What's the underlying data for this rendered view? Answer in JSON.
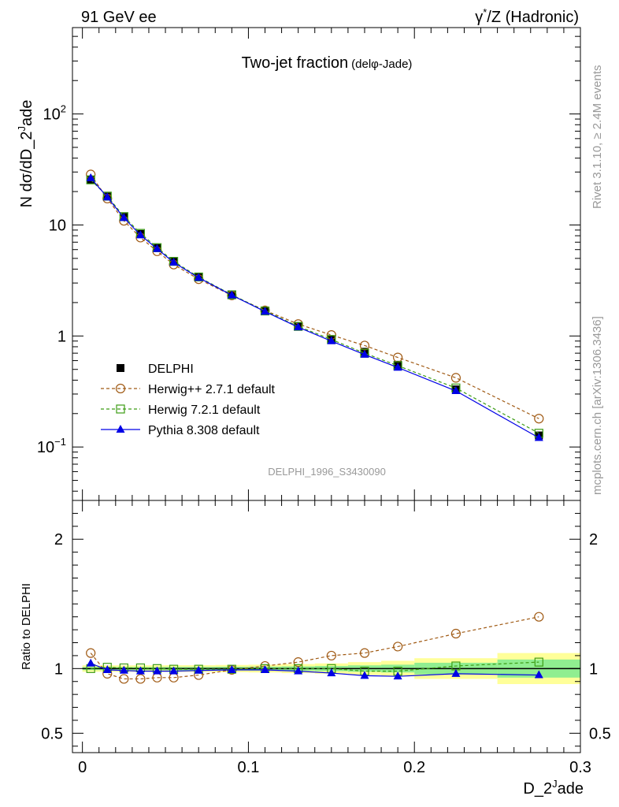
{
  "header": {
    "left": "91 GeV ee",
    "right_prefix": "γ",
    "right_sup": "*",
    "right_suffix": "/Z (Hadronic)"
  },
  "side_labels": {
    "rivet": "Rivet 3.1.10, ≥ 2.4M events",
    "mcplots": "mcplots.cern.ch [arXiv:1306.3436]"
  },
  "chart_data": [
    {
      "type": "line",
      "title": "Two-jet fraction",
      "title_note": "(delφ-Jade)",
      "watermark": "DELPHI_1996_S3430090",
      "ylabel_prefix": "N dσ/dD_2",
      "ylabel_sup": "J",
      "ylabel_suffix": "ade",
      "yscale": "log",
      "ylim": [
        0.033,
        600
      ],
      "xlim": [
        -0.006,
        0.3
      ],
      "yticks": [
        {
          "value": 0.1,
          "label": "10",
          "sup": "−1"
        },
        {
          "value": 1,
          "label": "1",
          "sup": ""
        },
        {
          "value": 10,
          "label": "10",
          "sup": ""
        },
        {
          "value": 100,
          "label": "10",
          "sup": "2"
        }
      ],
      "legend_position": "bottom-left",
      "x": [
        0.005,
        0.015,
        0.025,
        0.035,
        0.045,
        0.055,
        0.07,
        0.09,
        0.11,
        0.13,
        0.15,
        0.17,
        0.19,
        0.225,
        0.275
      ],
      "series": [
        {
          "name": "DELPHI",
          "color": "#000000",
          "marker": "filled-square",
          "line": "none",
          "values": [
            25.5,
            18.0,
            11.8,
            8.3,
            6.2,
            4.7,
            3.4,
            2.35,
            1.68,
            1.22,
            0.93,
            0.72,
            0.55,
            0.33,
            0.127
          ]
        },
        {
          "name": "Herwig++ 2.7.1 default",
          "color": "#a05a14",
          "marker": "open-circle",
          "line": "dashed",
          "values": [
            28.5,
            17.3,
            10.9,
            7.7,
            5.8,
            4.4,
            3.25,
            2.32,
            1.7,
            1.28,
            1.02,
            0.82,
            0.64,
            0.42,
            0.18
          ]
        },
        {
          "name": "Herwig 7.2.1 default",
          "color": "#3c9c14",
          "marker": "open-square",
          "line": "dashed",
          "values": [
            25.5,
            18.2,
            11.9,
            8.4,
            6.25,
            4.7,
            3.4,
            2.35,
            1.68,
            1.22,
            0.93,
            0.7,
            0.54,
            0.34,
            0.133
          ]
        },
        {
          "name": "Pythia 8.308 default",
          "color": "#0000e6",
          "marker": "filled-triangle",
          "line": "solid",
          "values": [
            26.5,
            17.8,
            11.6,
            8.1,
            6.1,
            4.6,
            3.35,
            2.33,
            1.66,
            1.2,
            0.9,
            0.68,
            0.52,
            0.32,
            0.121
          ]
        }
      ]
    },
    {
      "type": "line",
      "ylabel": "Ratio to DELPHI",
      "xlabel_prefix": "D_2",
      "xlabel_sup": "J",
      "xlabel_suffix": "ade",
      "ylim": [
        0.35,
        2.3
      ],
      "xlim": [
        -0.006,
        0.3
      ],
      "xticks": [
        {
          "value": 0,
          "label": "0"
        },
        {
          "value": 0.1,
          "label": "0.1"
        },
        {
          "value": 0.2,
          "label": "0.2"
        },
        {
          "value": 0.3,
          "label": "0.3"
        }
      ],
      "yticks": [
        {
          "value": 0.5,
          "label": "0.5"
        },
        {
          "value": 1,
          "label": "1"
        },
        {
          "value": 2,
          "label": "2"
        }
      ],
      "reference_line": 1.0,
      "bin_edges": [
        0.0,
        0.01,
        0.02,
        0.03,
        0.04,
        0.05,
        0.06,
        0.08,
        0.1,
        0.12,
        0.14,
        0.16,
        0.18,
        0.2,
        0.25,
        0.3
      ],
      "band_inner_color": "#90ee90",
      "band_outer_color": "#ffff99",
      "band_inner_halfwidth": [
        0.012,
        0.012,
        0.012,
        0.012,
        0.012,
        0.013,
        0.013,
        0.014,
        0.015,
        0.017,
        0.02,
        0.025,
        0.03,
        0.045,
        0.07
      ],
      "band_outer_halfwidth": [
        0.025,
        0.025,
        0.025,
        0.025,
        0.025,
        0.026,
        0.026,
        0.028,
        0.03,
        0.035,
        0.04,
        0.05,
        0.06,
        0.08,
        0.12
      ],
      "x": [
        0.005,
        0.015,
        0.025,
        0.035,
        0.045,
        0.055,
        0.07,
        0.09,
        0.11,
        0.13,
        0.15,
        0.17,
        0.19,
        0.225,
        0.275
      ],
      "series": [
        {
          "name": "Herwig++ 2.7.1 default",
          "color": "#a05a14",
          "marker": "open-circle",
          "line": "dashed",
          "values": [
            1.12,
            0.96,
            0.92,
            0.92,
            0.93,
            0.93,
            0.95,
            0.99,
            1.02,
            1.05,
            1.1,
            1.12,
            1.17,
            1.27,
            1.4
          ]
        },
        {
          "name": "Herwig 7.2.1 default",
          "color": "#3c9c14",
          "marker": "open-square",
          "line": "dashed",
          "values": [
            1.0,
            1.01,
            1.005,
            1.005,
            1.0,
            0.995,
            0.995,
            0.995,
            1.0,
            1.0,
            1.0,
            0.98,
            0.98,
            1.02,
            1.05
          ]
        },
        {
          "name": "Pythia 8.308 default",
          "color": "#0000e6",
          "marker": "filled-triangle",
          "line": "solid",
          "values": [
            1.04,
            0.99,
            0.985,
            0.98,
            0.98,
            0.98,
            0.985,
            0.99,
            0.99,
            0.98,
            0.965,
            0.945,
            0.94,
            0.96,
            0.95
          ]
        }
      ]
    }
  ]
}
